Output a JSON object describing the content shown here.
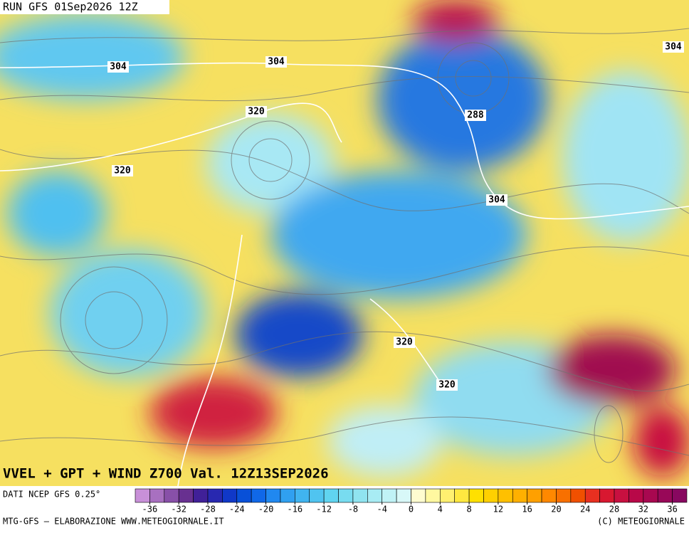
{
  "header": {
    "run": "RUN GFS 01Sep2026 12Z"
  },
  "map": {
    "title": "VVEL + GPT + WIND Z700 Val. 12Z13SEP2026",
    "contour_labels": [
      "304",
      "304",
      "320",
      "304",
      "320",
      "288",
      "304",
      "320",
      "320"
    ]
  },
  "legend": {
    "source": "DATI NCEP GFS 0.25°",
    "lim": [
      -38,
      38
    ],
    "ticks": [
      -36,
      -32,
      -28,
      -24,
      -20,
      -16,
      -12,
      -8,
      -4,
      0,
      4,
      8,
      12,
      16,
      20,
      24,
      28,
      32,
      36
    ],
    "colors": [
      "#c890d8",
      "#a870c0",
      "#8850a8",
      "#683090",
      "#402098",
      "#2828b0",
      "#1038c8",
      "#0850d8",
      "#1068e8",
      "#2088f0",
      "#30a0f0",
      "#40b4f0",
      "#50c4f0",
      "#60d4f0",
      "#78dcf0",
      "#90e4f0",
      "#a8ecf4",
      "#c0f2f6",
      "#d8f8f8",
      "#fffcd0",
      "#fff8a0",
      "#fff070",
      "#ffe840",
      "#ffe000",
      "#ffd000",
      "#ffc000",
      "#ffb000",
      "#ffa000",
      "#ff8800",
      "#f87000",
      "#f05000",
      "#e83020",
      "#d81830",
      "#c81040",
      "#b80848",
      "#a80850",
      "#980858",
      "#880860"
    ]
  },
  "footer": {
    "left": "MTG-GFS — ELABORAZIONE WWW.METEOGIORNALE.IT",
    "right": "(C) METEOGIORNALE"
  }
}
